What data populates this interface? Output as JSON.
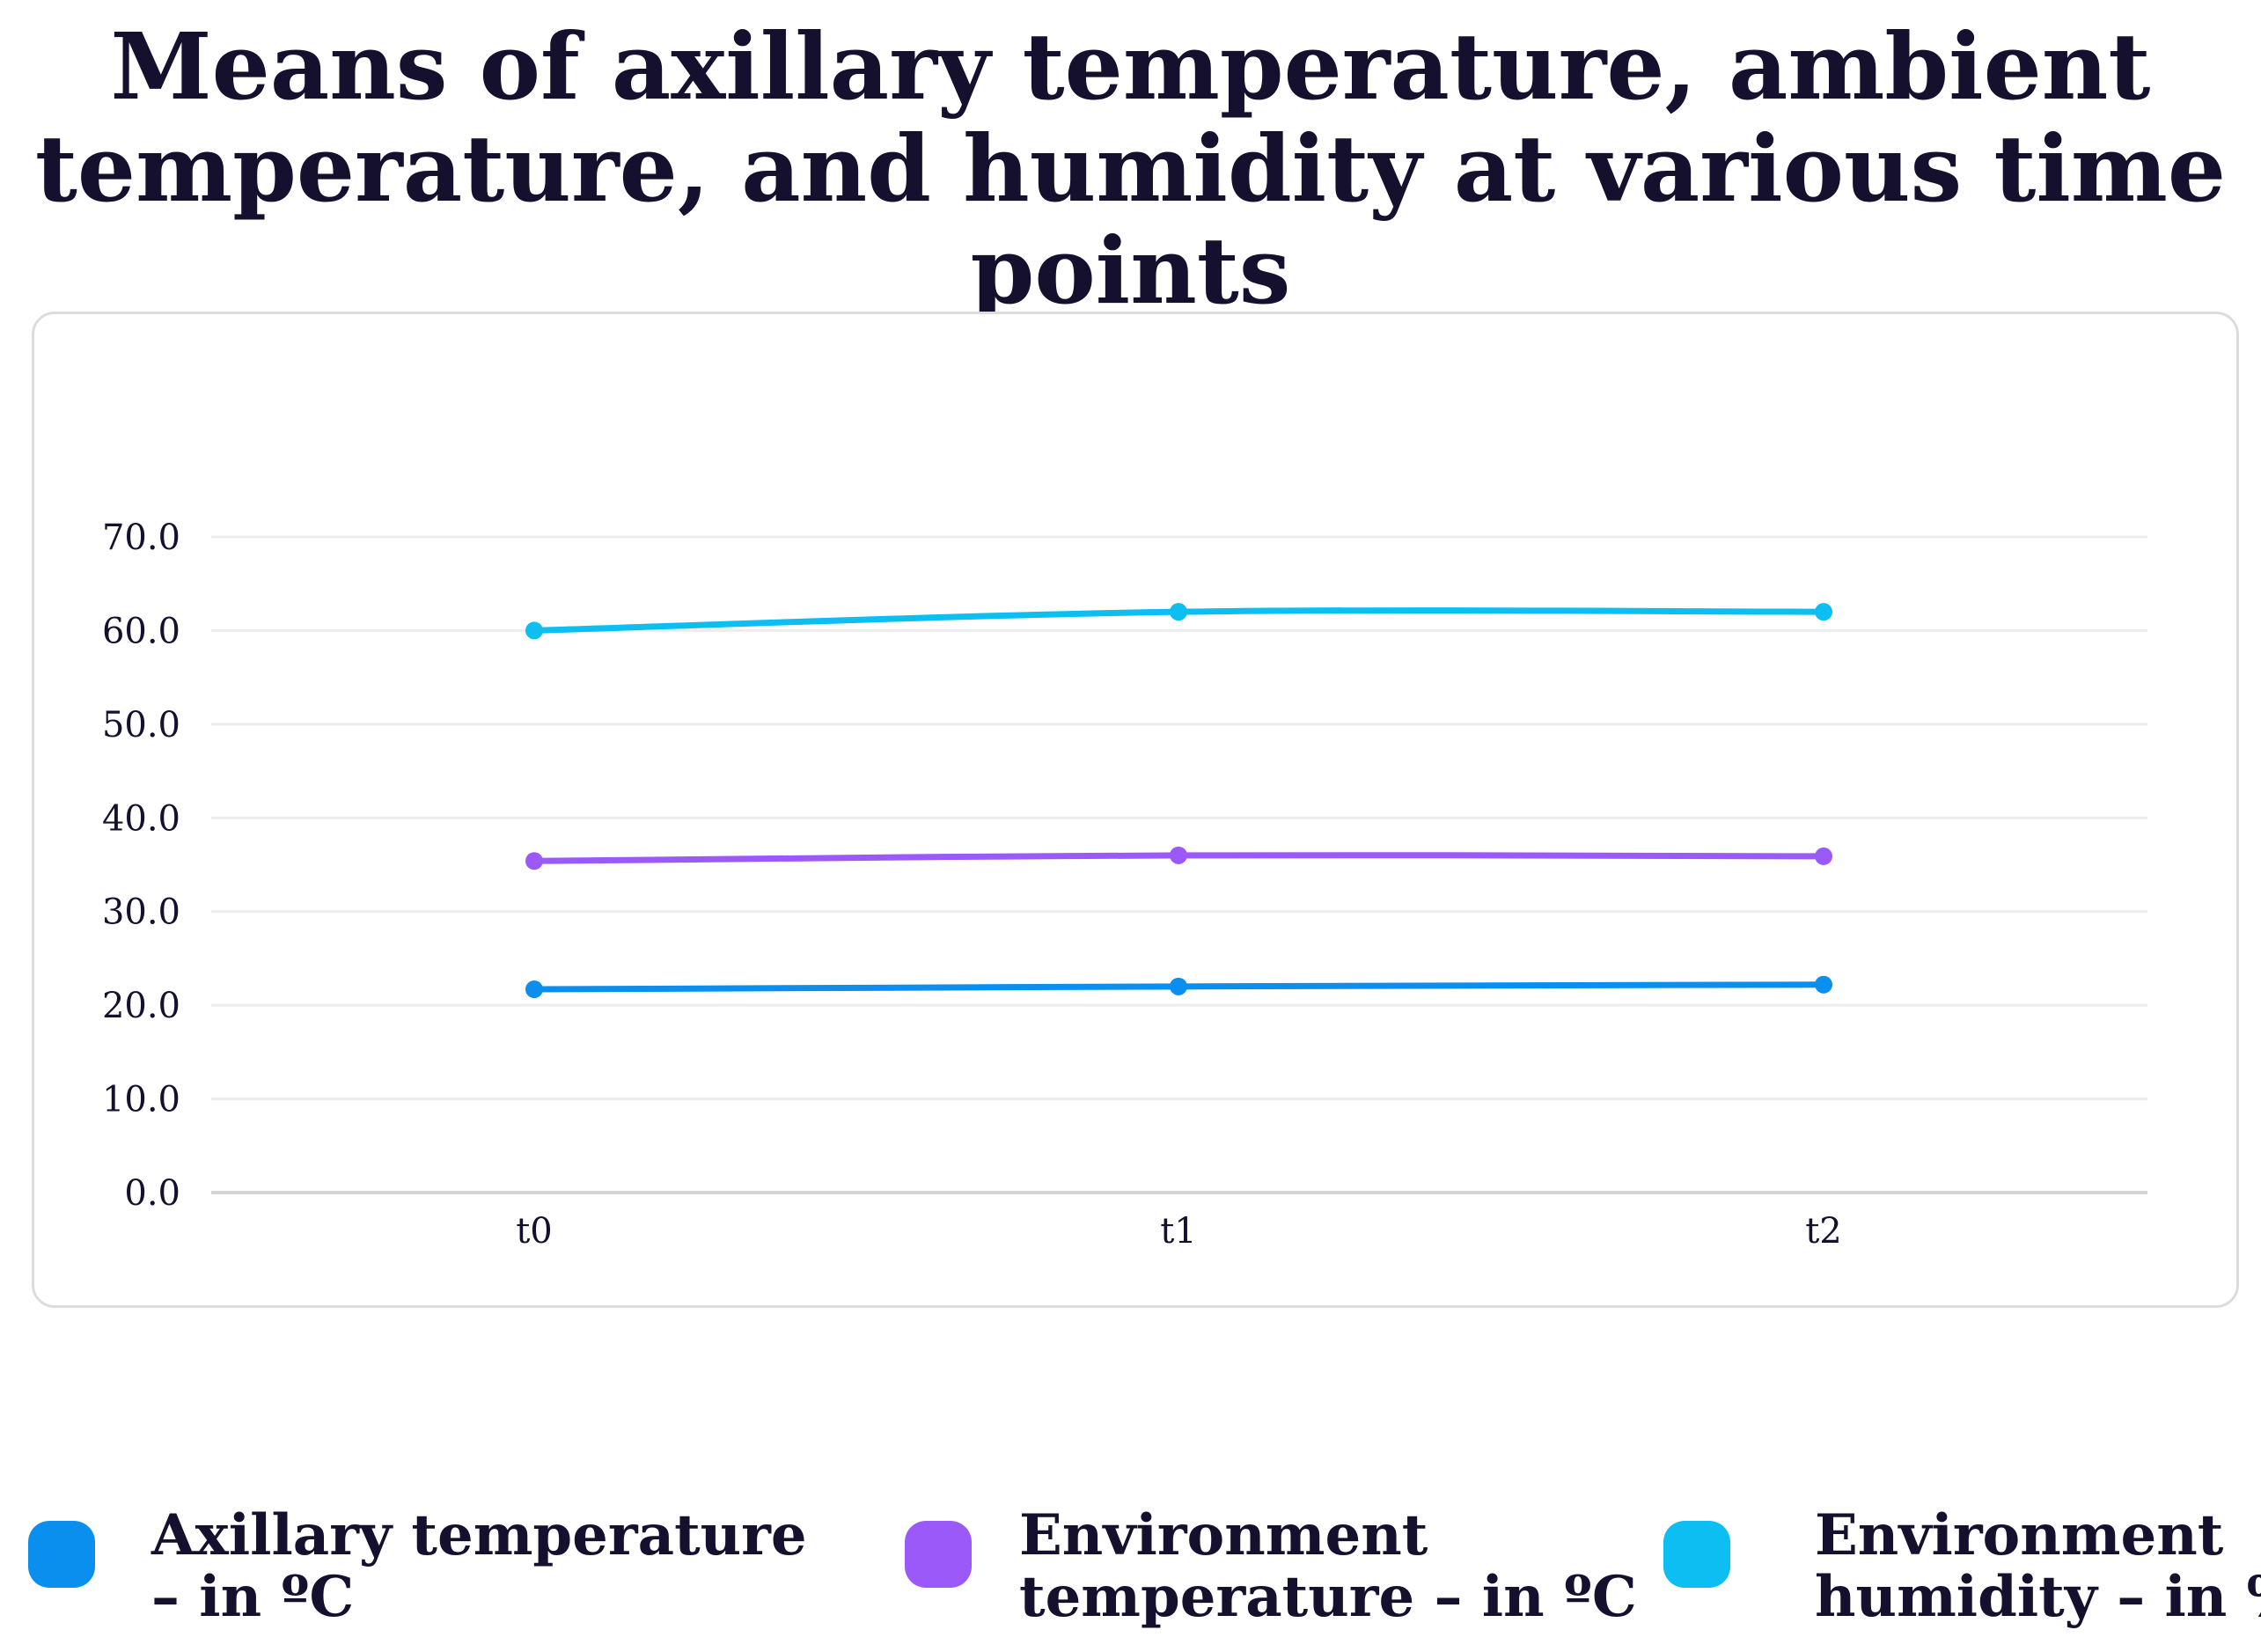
{
  "chart_data": {
    "type": "line",
    "title_lines": [
      "Means of axillary temperature, ambient",
      "temperature, and humidity at various time points"
    ],
    "categories": [
      "t0",
      "t1",
      "t2"
    ],
    "ylim": [
      0,
      70
    ],
    "yticks": [
      "0.0",
      "10.0",
      "20.0",
      "30.0",
      "40.0",
      "50.0",
      "60.0",
      "70.0"
    ],
    "grid": true,
    "legend_position": "bottom",
    "series": [
      {
        "name": "Axillary temperature – in ºC",
        "legend_lines": [
          "Axillary temperature",
          "– in ºC"
        ],
        "color": "#0a8fee",
        "values": [
          21.7,
          22.0,
          22.2
        ]
      },
      {
        "name": "Environment temperature – in ºC",
        "legend_lines": [
          "Environment",
          "temperature – in ºC"
        ],
        "color": "#9b59fa",
        "values": [
          35.4,
          36.0,
          35.9
        ]
      },
      {
        "name": "Environment humidity – in %",
        "legend_lines": [
          "Environment",
          "humidity – in %"
        ],
        "color": "#0cbef2",
        "values": [
          60.0,
          62.0,
          62.0
        ]
      }
    ]
  }
}
